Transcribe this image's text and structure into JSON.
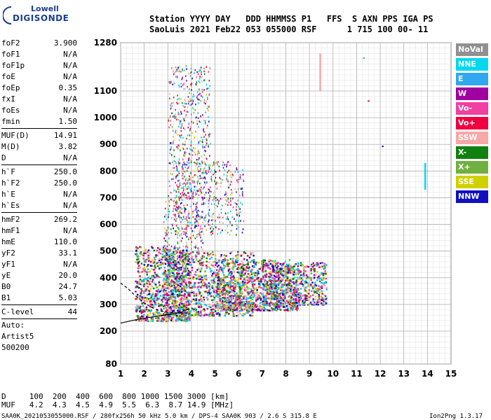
{
  "logo": {
    "line1": "Lowell",
    "line2": "DIGISONDE"
  },
  "header": {
    "line1": "Station YYYY DAY   DDD HHMMSS P1   FFS  S AXN PPS IGA PS",
    "line2": "SaoLuis 2021 Feb22 053 055000 RSF      1 715 100 00- 11"
  },
  "params": {
    "group1": [
      {
        "name": "foF2",
        "value": "3.900"
      },
      {
        "name": "foF1",
        "value": "N/A"
      },
      {
        "name": "foF1p",
        "value": "N/A"
      },
      {
        "name": "foE",
        "value": "N/A"
      },
      {
        "name": "foEp",
        "value": "0.35"
      },
      {
        "name": "fxI",
        "value": "N/A"
      },
      {
        "name": "foEs",
        "value": "N/A"
      },
      {
        "name": "fmin",
        "value": "1.50"
      }
    ],
    "group2": [
      {
        "name": "MUF(D)",
        "value": "14.91"
      },
      {
        "name": "M(D)",
        "value": "3.82"
      },
      {
        "name": "D",
        "value": "N/A"
      }
    ],
    "group3": [
      {
        "name": "h`F",
        "value": "250.0"
      },
      {
        "name": "h`F2",
        "value": "250.0"
      },
      {
        "name": "h`E",
        "value": "N/A"
      },
      {
        "name": "h`Es",
        "value": "N/A"
      }
    ],
    "group4": [
      {
        "name": "hmF2",
        "value": "269.2"
      },
      {
        "name": "hmF1",
        "value": "N/A"
      },
      {
        "name": "hmE",
        "value": "110.0"
      },
      {
        "name": "yF2",
        "value": "33.1"
      },
      {
        "name": "yF1",
        "value": "N/A"
      },
      {
        "name": "yE",
        "value": "20.0"
      },
      {
        "name": "B0",
        "value": "24.7"
      },
      {
        "name": "B1",
        "value": "5.03"
      }
    ],
    "clevel": {
      "name": "C-level",
      "value": "44"
    },
    "auto": [
      "Auto:",
      "Artist5",
      "500200"
    ]
  },
  "legend": [
    {
      "label": "NoVal",
      "color": "#909090"
    },
    {
      "label": "NNE",
      "color": "#00d8f0"
    },
    {
      "label": "E",
      "color": "#30a8f0"
    },
    {
      "label": "W",
      "color": "#a000a0"
    },
    {
      "label": "Vo-",
      "color": "#f040a0"
    },
    {
      "label": "Vo+",
      "color": "#f00040"
    },
    {
      "label": "SSW",
      "color": "#f8a8a8"
    },
    {
      "label": "X-",
      "color": "#108010"
    },
    {
      "label": "X+",
      "color": "#70b040"
    },
    {
      "label": "SSE",
      "color": "#d0d000"
    },
    {
      "label": "NNW",
      "color": "#1010c0"
    }
  ],
  "footer": {
    "d_row": "D     100  200  400  600  800 1000 1500 3000 [km]",
    "muf_row": "MUF   4.2  4.3  4.5  4.9  5.5  6.3  8.7 14.9 [MHz]",
    "filename": "SAA0K_2021053055000.RSF / 280fx256h 50 kHz 5.0 km / DPS-4 SAA0K 903 / 2.6 S 315.8 E",
    "version": "Ion2Png 1.3.17"
  },
  "chart_data": {
    "type": "scatter",
    "title": "",
    "xlabel": "",
    "ylabel": "",
    "xlim": [
      1,
      15
    ],
    "ylim": [
      80,
      1280
    ],
    "x_ticks": [
      "1",
      "2",
      "3",
      "4",
      "5",
      "6",
      "7",
      "8",
      "9",
      "10",
      "11",
      "12",
      "13",
      "14",
      "15"
    ],
    "y_ticks": [
      "80",
      "200",
      "300",
      "400",
      "500",
      "600",
      "700",
      "800",
      "900",
      "1000",
      "1100",
      "1280"
    ],
    "y_tick_values": [
      80,
      200,
      300,
      400,
      500,
      600,
      700,
      800,
      900,
      1000,
      1100,
      1280
    ],
    "grid": true,
    "traces": [
      {
        "name": "h'F trace (lower)",
        "points": [
          [
            1.0,
            230
          ],
          [
            1.5,
            240
          ],
          [
            2.0,
            248
          ],
          [
            2.5,
            255
          ],
          [
            3.0,
            262
          ],
          [
            3.3,
            266
          ],
          [
            3.6,
            272
          ],
          [
            3.9,
            285
          ]
        ]
      },
      {
        "name": "h'F trace (upper, dashed)",
        "points": [
          [
            1.0,
            380
          ],
          [
            1.3,
            360
          ],
          [
            1.6,
            335
          ],
          [
            2.0,
            305
          ],
          [
            2.3,
            290
          ],
          [
            2.6,
            278
          ],
          [
            3.0,
            270
          ],
          [
            3.5,
            268
          ],
          [
            3.9,
            268
          ]
        ]
      }
    ],
    "echo_regions": [
      {
        "x": [
          1.6,
          3.9
        ],
        "y": [
          240,
          520
        ]
      },
      {
        "x": [
          2.8,
          6.6
        ],
        "y": [
          260,
          500
        ]
      },
      {
        "x": [
          5.0,
          8.5
        ],
        "y": [
          280,
          470
        ]
      },
      {
        "x": [
          7.0,
          9.7
        ],
        "y": [
          300,
          460
        ]
      },
      {
        "x": [
          2.8,
          4.5
        ],
        "y": [
          470,
          720
        ]
      },
      {
        "x": [
          3.3,
          6.2
        ],
        "y": [
          560,
          840
        ]
      },
      {
        "x": [
          3.0,
          4.8
        ],
        "y": [
          700,
          1200
        ]
      }
    ],
    "isolated_points": [
      {
        "x": 9.45,
        "y1": 1100,
        "y2": 1240,
        "color": "#f8a8a8"
      },
      {
        "x": 13.9,
        "y1": 730,
        "y2": 830,
        "color": "#00d8f0"
      },
      {
        "x": 11.3,
        "y1": 1220,
        "y2": 1225,
        "color": "#30a8f0"
      },
      {
        "x": 12.1,
        "y1": 890,
        "y2": 895,
        "color": "#1010c0"
      },
      {
        "x": 11.5,
        "y1": 1060,
        "y2": 1065,
        "color": "#f00040"
      }
    ]
  }
}
